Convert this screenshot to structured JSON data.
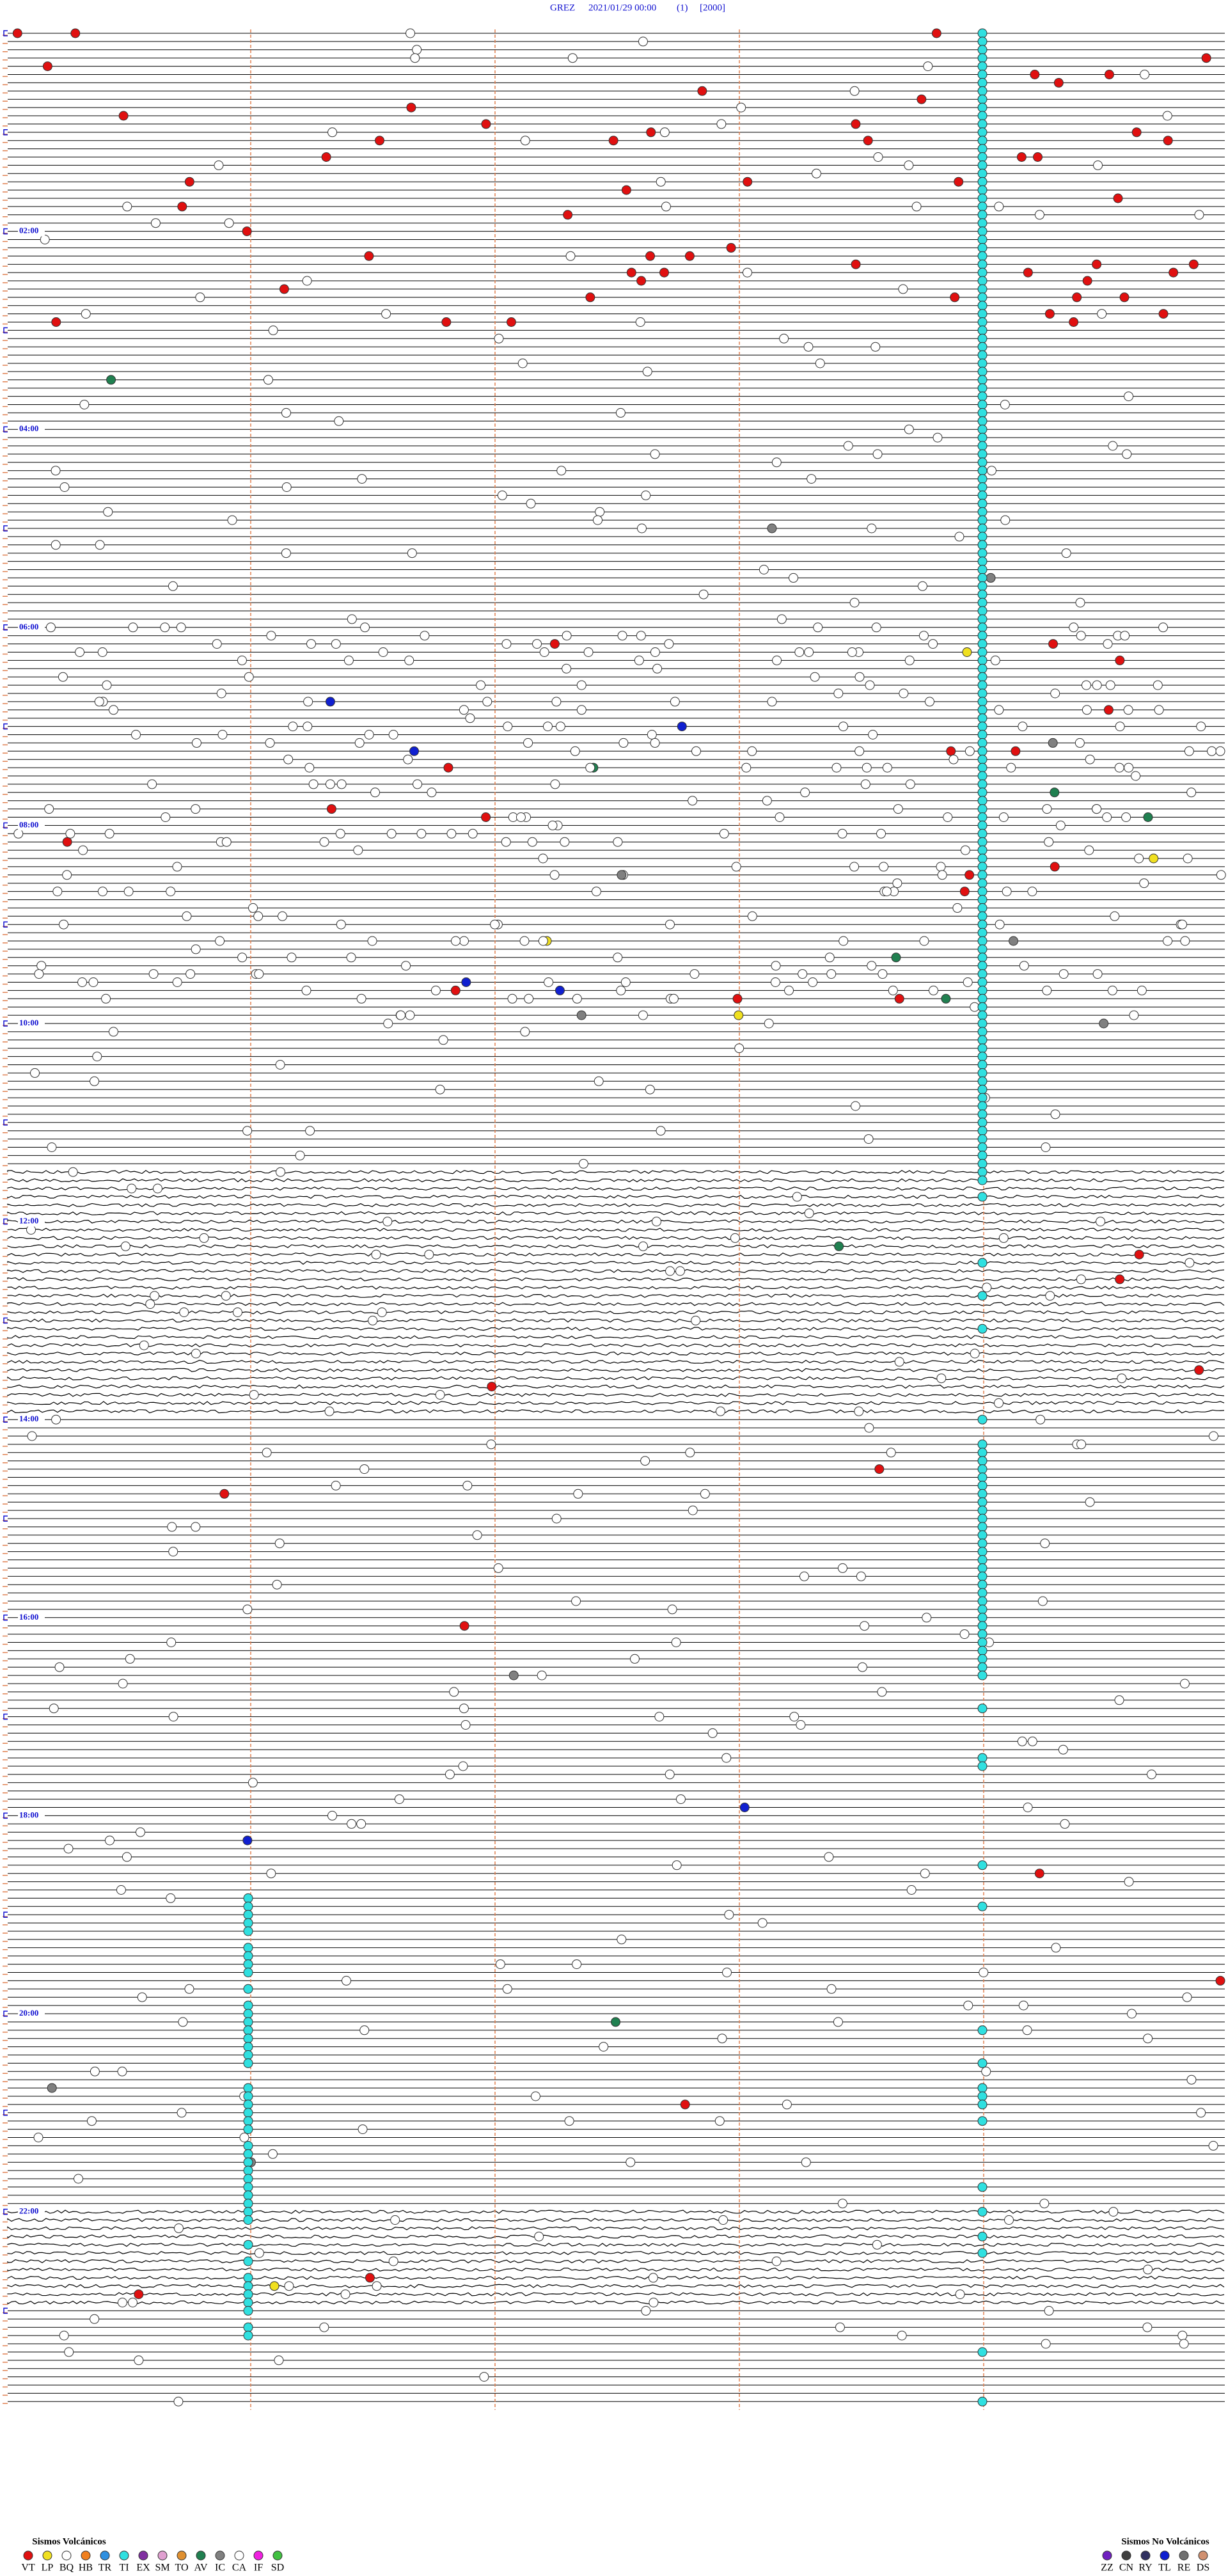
{
  "header": {
    "station": "GREZ",
    "datetime": "2021/01/29 00:00",
    "channel": "(1)",
    "scale": "[2000]"
  },
  "time_labels": [
    "02:00",
    "04:00",
    "06:00",
    "08:00",
    "10:00",
    "12:00",
    "14:00",
    "16:00",
    "18:00",
    "20:00",
    "22:00"
  ],
  "legend": {
    "volcanic": {
      "title": "Sismos Volcánicos",
      "items": [
        {
          "code": "VT",
          "color": "#e01010"
        },
        {
          "code": "LP",
          "color": "#f0e020"
        },
        {
          "code": "BQ",
          "color": "#ffffff"
        },
        {
          "code": "HB",
          "color": "#f08020"
        },
        {
          "code": "TR",
          "color": "#3090e0"
        },
        {
          "code": "TI",
          "color": "#30e0e0"
        },
        {
          "code": "EX",
          "color": "#8030a0"
        },
        {
          "code": "SM",
          "color": "#e0a0d0"
        },
        {
          "code": "TO",
          "color": "#e09030"
        },
        {
          "code": "AV",
          "color": "#208050"
        },
        {
          "code": "IC",
          "color": "#808080"
        },
        {
          "code": "CA",
          "color": "#ffffff"
        },
        {
          "code": "IF",
          "color": "#f020e0"
        },
        {
          "code": "SD",
          "color": "#40c040"
        }
      ]
    },
    "non_volcanic": {
      "title": "Sismos No Volcánicos",
      "items": [
        {
          "code": "ZZ",
          "color": "#7020c0"
        },
        {
          "code": "CN",
          "color": "#404040"
        },
        {
          "code": "RY",
          "color": "#303060"
        },
        {
          "code": "TL",
          "color": "#1020d0"
        },
        {
          "code": "RE",
          "color": "#707070"
        },
        {
          "code": "DS",
          "color": "#d09070"
        }
      ]
    }
  }
}
